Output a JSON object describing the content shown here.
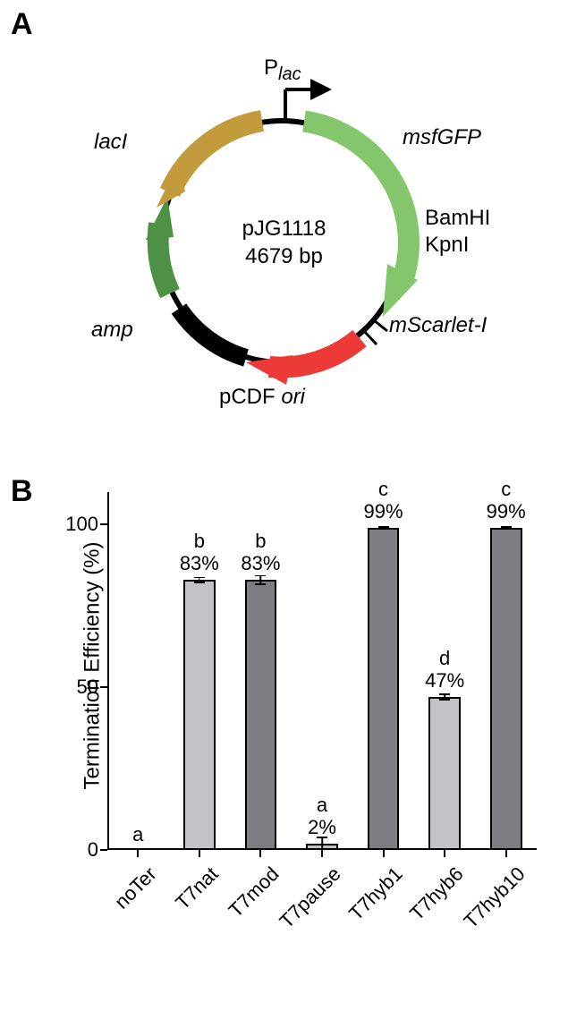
{
  "panel_labels": {
    "A": "A",
    "B": "B"
  },
  "plasmid": {
    "name": "pJG1118",
    "size": "4679 bp",
    "promoter_prefix": "P",
    "promoter_sub": "lac",
    "features": {
      "msfGFP": {
        "label": "msfGFP",
        "color": "#84c66b"
      },
      "mScarlet": {
        "label": "mScarlet-I",
        "color": "#ec3b37"
      },
      "pCDF_ori": {
        "label": "pCDF ",
        "label2": "ori",
        "color": "#000000"
      },
      "amp": {
        "label": "amp",
        "color": "#4d9244"
      },
      "lacI": {
        "label": "lacI",
        "color": "#c19b3c"
      }
    },
    "restriction_sites": {
      "BamHI": "BamHI",
      "KpnI": "KpnI"
    }
  },
  "chart": {
    "type": "bar",
    "ylabel": "Termination Efficiency (%)",
    "ylim": [
      0,
      110
    ],
    "yticks": [
      0,
      50,
      100
    ],
    "bar_width": 0.52,
    "bar_border": "#000000",
    "light_fill": "#c1c3c7",
    "dark_fill": "#7c7e82",
    "background": "#ffffff",
    "bars": [
      {
        "name": "noTer",
        "value": 0,
        "group": "a",
        "pct": "",
        "fill": "none"
      },
      {
        "name": "T7nat",
        "value": 83,
        "group": "b",
        "pct": "83%",
        "fill": "light",
        "err": 1
      },
      {
        "name": "T7mod",
        "value": 83,
        "group": "b",
        "pct": "83%",
        "fill": "dark",
        "err": 1.5
      },
      {
        "name": "T7pause",
        "value": 2,
        "group": "a",
        "pct": "2%",
        "fill": "light",
        "err": 2
      },
      {
        "name": "T7hyb1",
        "value": 99,
        "group": "c",
        "pct": "99%",
        "fill": "dark",
        "err": 0.5
      },
      {
        "name": "T7hyb6",
        "value": 47,
        "group": "d",
        "pct": "47%",
        "fill": "light",
        "err": 1
      },
      {
        "name": "T7hyb10",
        "value": 99,
        "group": "c",
        "pct": "99%",
        "fill": "dark",
        "err": 0.5
      }
    ]
  }
}
